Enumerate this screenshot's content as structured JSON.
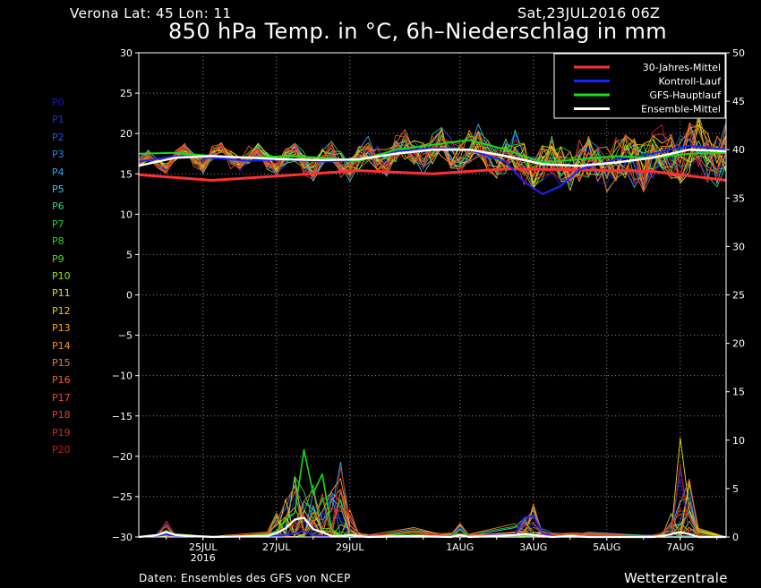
{
  "header": {
    "station": "Verona   Lat: 45  Lon: 11",
    "datestamp": "Sat,23JUL2016 06Z",
    "title": "850 hPa Temp. in °C, 6h–Niederschlag in mm"
  },
  "footer": {
    "source": "Daten: Ensembles des GFS von NCEP",
    "brand": "Wetterzentrale"
  },
  "members": [
    {
      "label": "P0",
      "color": "#1515d8"
    },
    {
      "label": "P1",
      "color": "#1a2ee0"
    },
    {
      "label": "P2",
      "color": "#1e52e8"
    },
    {
      "label": "P3",
      "color": "#2a80ee"
    },
    {
      "label": "P4",
      "color": "#30a8f0"
    },
    {
      "label": "P5",
      "color": "#3cc8e8"
    },
    {
      "label": "P6",
      "color": "#30d080"
    },
    {
      "label": "P7",
      "color": "#22d040"
    },
    {
      "label": "P8",
      "color": "#28d020"
    },
    {
      "label": "P9",
      "color": "#5ad818"
    },
    {
      "label": "P10",
      "color": "#9ae010"
    },
    {
      "label": "P11",
      "color": "#e0e010"
    },
    {
      "label": "P12",
      "color": "#f0c810"
    },
    {
      "label": "P13",
      "color": "#f0a818"
    },
    {
      "label": "P14",
      "color": "#f09020"
    },
    {
      "label": "P15",
      "color": "#f07828"
    },
    {
      "label": "P16",
      "color": "#f06030"
    },
    {
      "label": "P17",
      "color": "#e84a30"
    },
    {
      "label": "P18",
      "color": "#e03a28"
    },
    {
      "label": "P19",
      "color": "#d02a20"
    },
    {
      "label": "P20",
      "color": "#c01e18"
    }
  ],
  "chart_data": {
    "type": "line",
    "x_unit": "hours since 23JUL2016 06Z",
    "xlim": [
      0,
      384
    ],
    "x_ticks": [
      {
        "x": 42,
        "label": "25JUL",
        "sub": "2016"
      },
      {
        "x": 90,
        "label": "27JUL",
        "sub": ""
      },
      {
        "x": 138,
        "label": "29JUL",
        "sub": ""
      },
      {
        "x": 210,
        "label": "1AUG",
        "sub": ""
      },
      {
        "x": 258,
        "label": "3AUG",
        "sub": ""
      },
      {
        "x": 306,
        "label": "5AUG",
        "sub": ""
      },
      {
        "x": 354,
        "label": "7AUG",
        "sub": ""
      }
    ],
    "y_left": {
      "range": [
        -30,
        30
      ],
      "ticks": [
        30,
        25,
        20,
        15,
        10,
        5,
        0,
        -5,
        -10,
        -15,
        -20,
        -25,
        -30
      ]
    },
    "y_right": {
      "range": [
        0,
        50
      ],
      "ticks": [
        50,
        45,
        40,
        35,
        30,
        25,
        20,
        15,
        10,
        5,
        0
      ]
    },
    "grid": true,
    "legend_position": "top-right",
    "legend": [
      {
        "name": "30-Jahres-Mittel",
        "color": "#ff3030"
      },
      {
        "name": "Kontroll-Lauf",
        "color": "#2020ff"
      },
      {
        "name": "GFS-Hauptlauf",
        "color": "#10e010"
      },
      {
        "name": "Ensemble-Mittel",
        "color": "#ffffff"
      }
    ],
    "temperature": {
      "climatology": {
        "x": [
          0,
          48,
          96,
          144,
          192,
          240,
          288,
          336,
          384
        ],
        "y": [
          14.9,
          14.2,
          14.8,
          15.4,
          15.0,
          15.6,
          15.5,
          15.3,
          14.2
        ]
      },
      "ensemble_mean": {
        "x": [
          0,
          24,
          48,
          72,
          96,
          120,
          144,
          168,
          192,
          216,
          240,
          264,
          288,
          312,
          336,
          360,
          384
        ],
        "y": [
          16.0,
          17.0,
          17.2,
          17.0,
          16.8,
          16.7,
          16.8,
          17.5,
          18.0,
          18.0,
          17.2,
          16.2,
          16.0,
          16.4,
          17.0,
          18.0,
          17.8
        ]
      },
      "control": {
        "x": [
          0,
          24,
          48,
          72,
          96,
          120,
          144,
          168,
          192,
          216,
          240,
          252,
          264,
          276,
          288,
          312,
          336,
          360,
          384
        ],
        "y": [
          16.5,
          17.2,
          17.0,
          16.6,
          16.8,
          16.5,
          16.7,
          17.8,
          18.2,
          18.0,
          16.5,
          14.0,
          12.5,
          13.5,
          15.5,
          16.8,
          17.5,
          18.5,
          18.0
        ]
      },
      "gfs_main": {
        "x": [
          0,
          24,
          48,
          72,
          96,
          120,
          144,
          168,
          192,
          216,
          240,
          264,
          288,
          312,
          336,
          360,
          384
        ],
        "y": [
          17.5,
          17.6,
          17.2,
          17.0,
          17.2,
          17.0,
          16.6,
          18.0,
          18.6,
          19.2,
          18.0,
          16.4,
          16.8,
          17.2,
          17.0,
          17.5,
          17.6
        ]
      }
    },
    "precipitation_main": {
      "x": [
        12,
        18,
        24,
        48,
        84,
        90,
        96,
        102,
        108,
        114,
        120,
        126,
        132,
        138,
        144,
        150,
        180,
        204,
        210,
        216,
        246,
        252,
        258,
        264,
        270,
        282,
        294,
        336,
        342,
        348,
        354,
        360,
        366
      ],
      "ensemble_mean": [
        0.2,
        0.5,
        0.2,
        0,
        0.1,
        0.4,
        0.9,
        1.8,
        2.0,
        0.8,
        0.5,
        0.1,
        0.1,
        0.2,
        0.1,
        0,
        0.1,
        0,
        0.2,
        0,
        0.2,
        0.3,
        0.2,
        0.1,
        0,
        0.1,
        0,
        0,
        0.1,
        0.3,
        0.5,
        0.3,
        0
      ],
      "control": [
        0.1,
        0.3,
        0.1,
        0,
        0,
        0.1,
        0.2,
        0.4,
        0.6,
        0.2,
        0.1,
        0,
        0,
        0,
        0,
        0,
        0,
        0,
        1.0,
        0,
        0.3,
        2.0,
        2.2,
        0.4,
        0.1,
        0,
        0,
        0,
        0,
        0,
        0,
        0,
        0
      ],
      "gfs_main": [
        0.2,
        0.6,
        0.3,
        0,
        0.2,
        0.6,
        1.8,
        2.5,
        9.0,
        4.5,
        6.5,
        0.8,
        0.2,
        0,
        0,
        0,
        0,
        0,
        0.8,
        0,
        0,
        0,
        0.3,
        0,
        0,
        0,
        0,
        0,
        0,
        0,
        0,
        0,
        0
      ],
      "max_member": [
        0.5,
        2.0,
        0.4,
        0.1,
        0.6,
        2.5,
        4.0,
        7.0,
        6.0,
        5.5,
        4.5,
        5.0,
        8.0,
        3.0,
        0.5,
        0.3,
        1.0,
        0.5,
        1.5,
        0.3,
        1.5,
        2.5,
        4.0,
        1.0,
        0.5,
        0.5,
        0.5,
        0.2,
        0.5,
        2.5,
        10.5,
        6.0,
        1.0
      ]
    }
  }
}
